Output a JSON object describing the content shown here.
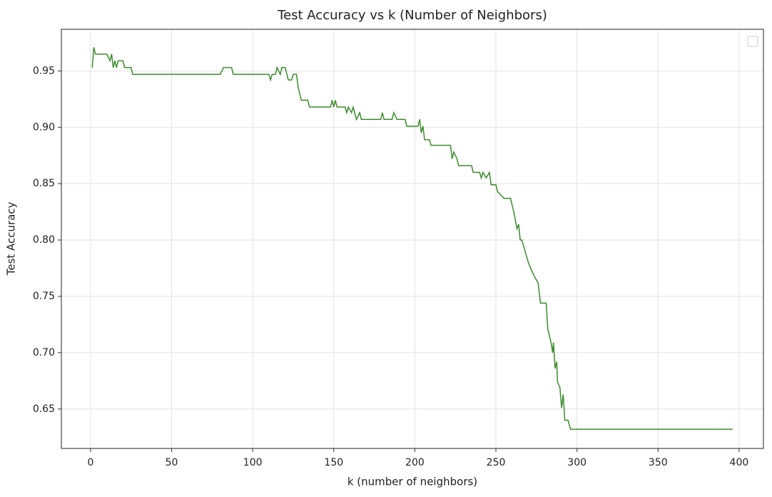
{
  "chart_data": {
    "type": "line",
    "title": "Test Accuracy vs k (Number of Neighbors)",
    "xlabel": "k (number of neighbors)",
    "ylabel": "Test Accuracy",
    "x": [
      1,
      2,
      3,
      10,
      12,
      13,
      14,
      15,
      16,
      17,
      20,
      21,
      25,
      26,
      80,
      82,
      87,
      88,
      110,
      111,
      112,
      114,
      115,
      117,
      118,
      120,
      122,
      124,
      125,
      127,
      128,
      130,
      134,
      135,
      148,
      149,
      150,
      151,
      152,
      157,
      158,
      159,
      161,
      162,
      164,
      166,
      167,
      179,
      180,
      181,
      186,
      187,
      189,
      194,
      195,
      202,
      203,
      204,
      205,
      206,
      209,
      210,
      222,
      223,
      224,
      226,
      227,
      235,
      236,
      240,
      241,
      242,
      244,
      246,
      247,
      250,
      251,
      255,
      259,
      261,
      263,
      264,
      265,
      266,
      268,
      270,
      272,
      274,
      276,
      277.5,
      281,
      282,
      284,
      285,
      285.5,
      286.5,
      287.5,
      288,
      289.5,
      290.5,
      291.5,
      292.5,
      294.5,
      296,
      396
    ],
    "series": [
      {
        "color": "#3c8c2c",
        "values": [
          0.953,
          0.971,
          0.965,
          0.965,
          0.959,
          0.965,
          0.953,
          0.959,
          0.953,
          0.959,
          0.959,
          0.953,
          0.953,
          0.947,
          0.947,
          0.953,
          0.953,
          0.947,
          0.947,
          0.942,
          0.947,
          0.947,
          0.953,
          0.947,
          0.953,
          0.953,
          0.942,
          0.942,
          0.947,
          0.947,
          0.936,
          0.924,
          0.924,
          0.918,
          0.918,
          0.924,
          0.918,
          0.924,
          0.918,
          0.918,
          0.913,
          0.918,
          0.913,
          0.918,
          0.907,
          0.913,
          0.907,
          0.907,
          0.913,
          0.907,
          0.907,
          0.913,
          0.907,
          0.907,
          0.901,
          0.901,
          0.907,
          0.895,
          0.901,
          0.889,
          0.889,
          0.884,
          0.884,
          0.872,
          0.878,
          0.872,
          0.866,
          0.866,
          0.86,
          0.86,
          0.855,
          0.86,
          0.855,
          0.86,
          0.849,
          0.849,
          0.843,
          0.837,
          0.837,
          0.825,
          0.81,
          0.814,
          0.8,
          0.8,
          0.79,
          0.78,
          0.773,
          0.767,
          0.762,
          0.744,
          0.744,
          0.721,
          0.709,
          0.7,
          0.709,
          0.686,
          0.692,
          0.674,
          0.669,
          0.651,
          0.663,
          0.64,
          0.64,
          0.632,
          0.632
        ]
      }
    ],
    "xlim": [
      -18,
      415
    ],
    "ylim": [
      0.615,
      0.987
    ],
    "xticks": [
      0,
      50,
      100,
      150,
      200,
      250,
      300,
      350,
      400
    ],
    "yticks": [
      0.65,
      {
        "value": 0.7,
        "label": "0.70"
      },
      0.75,
      {
        "value": 0.8,
        "label": "0.80"
      },
      0.85,
      {
        "value": 0.9,
        "label": "0.90"
      },
      0.95
    ],
    "grid": true,
    "legend": "upper right"
  }
}
